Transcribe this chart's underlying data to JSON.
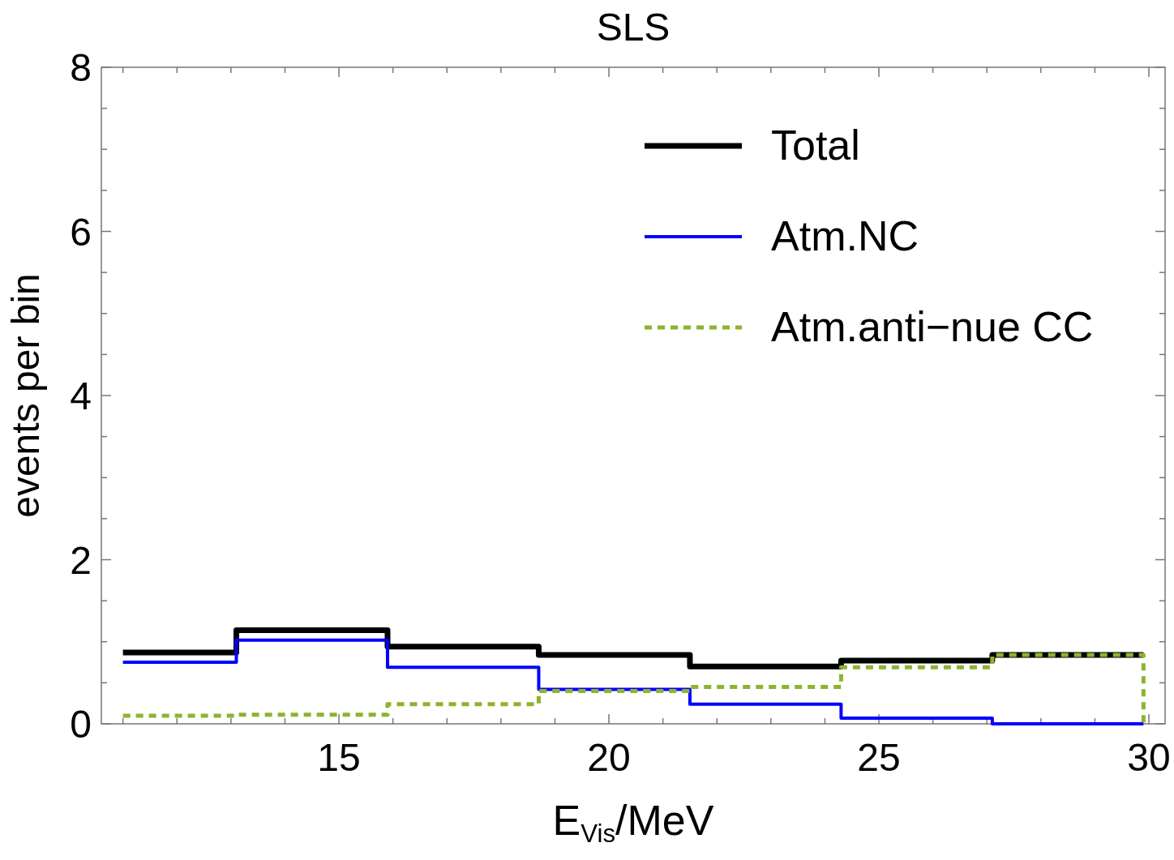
{
  "chart_data": {
    "type": "step",
    "title": "SLS",
    "xlabel": "E$_{Vis}$/MeV",
    "ylabel": "events per bin",
    "xlim": [
      10.6,
      30.3
    ],
    "ylim": [
      0,
      8
    ],
    "xticks": [
      {
        "value": 11,
        "label": null
      },
      {
        "value": 12,
        "label": null
      },
      {
        "value": 13,
        "label": null
      },
      {
        "value": 14,
        "label": null
      },
      15,
      {
        "value": 16,
        "label": null
      },
      {
        "value": 17,
        "label": null
      },
      {
        "value": 18,
        "label": null
      },
      {
        "value": 19,
        "label": null
      },
      20,
      {
        "value": 21,
        "label": null
      },
      {
        "value": 22,
        "label": null
      },
      {
        "value": 23,
        "label": null
      },
      {
        "value": 24,
        "label": null
      },
      25,
      {
        "value": 26,
        "label": null
      },
      {
        "value": 27,
        "label": null
      },
      {
        "value": 28,
        "label": null
      },
      {
        "value": 29,
        "label": null
      },
      30
    ],
    "yticks": [
      0,
      {
        "value": 0.5,
        "label": null
      },
      {
        "value": 1,
        "label": null
      },
      {
        "value": 1.5,
        "label": null
      },
      2,
      {
        "value": 2.5,
        "label": null
      },
      {
        "value": 3,
        "label": null
      },
      {
        "value": 3.5,
        "label": null
      },
      4,
      {
        "value": 4.5,
        "label": null
      },
      {
        "value": 5,
        "label": null
      },
      {
        "value": 5.5,
        "label": null
      },
      6,
      {
        "value": 6.5,
        "label": null
      },
      {
        "value": 7,
        "label": null
      },
      {
        "value": 7.5,
        "label": null
      },
      8
    ],
    "grid": false,
    "legend": "top right",
    "series": [
      {
        "name": "Total",
        "color": "#000000",
        "line_style": "solid",
        "x": [
          11,
          13.1,
          15.9,
          18.7,
          21.5,
          24.3,
          27.1,
          29.9
        ],
        "values": [
          0.87,
          1.14,
          0.94,
          0.84,
          0.7,
          0.77,
          0.84,
          0.84
        ]
      },
      {
        "name": "Atm.NC",
        "color": "#0000ff",
        "line_style": "solid",
        "x": [
          11,
          13.1,
          15.9,
          18.7,
          21.5,
          24.3,
          27.1,
          29.9
        ],
        "values": [
          0.75,
          1.02,
          0.69,
          0.42,
          0.24,
          0.07,
          0,
          0
        ]
      },
      {
        "name": "Atm.anti−nue CC",
        "color": "#8db32f",
        "line_style": "dotted",
        "x": [
          11,
          13.1,
          15.9,
          18.7,
          21.5,
          24.3,
          27.1,
          29.9
        ],
        "values": [
          0.1,
          0.11,
          0.24,
          0.4,
          0.45,
          0.69,
          0.84,
          0
        ]
      }
    ]
  }
}
